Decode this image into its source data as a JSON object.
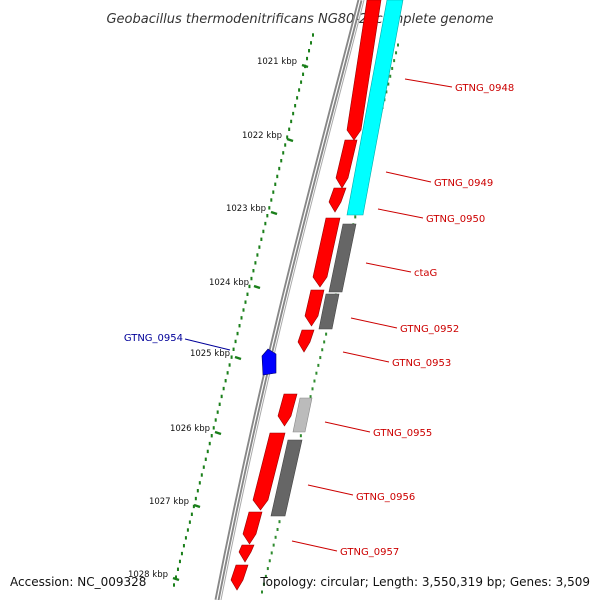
{
  "title": "Geobacillus thermodenitrificans NG80-2, complete genome",
  "accession_text": "Accession: NC_009328",
  "topology_text": "Topology: circular; Length: 3,550,319 bp; Genes: 3,509",
  "colors": {
    "forward_gene": "#ff0000",
    "reverse_gene": "#0000ff",
    "cds_dark": "#666666",
    "cds_light": "#bbbbbb",
    "rna": "#00ffff",
    "tick": "#1a7f1a",
    "axis": "#888888",
    "label_forward": "#cc0000",
    "label_reverse": "#000099"
  },
  "ticks": [
    {
      "label": "1021 kbp"
    },
    {
      "label": "1022 kbp"
    },
    {
      "label": "1023 kbp"
    },
    {
      "label": "1024 kbp"
    },
    {
      "label": "1025 kbp"
    },
    {
      "label": "1026 kbp"
    },
    {
      "label": "1027 kbp"
    },
    {
      "label": "1028 kbp"
    }
  ],
  "gene_labels": [
    {
      "name": "GTNG_0948",
      "strand": "forward"
    },
    {
      "name": "GTNG_0949",
      "strand": "forward"
    },
    {
      "name": "GTNG_0950",
      "strand": "forward"
    },
    {
      "name": "ctaG",
      "strand": "forward"
    },
    {
      "name": "GTNG_0952",
      "strand": "forward"
    },
    {
      "name": "GTNG_0953",
      "strand": "forward"
    },
    {
      "name": "GTNG_0954",
      "strand": "reverse"
    },
    {
      "name": "GTNG_0955",
      "strand": "forward"
    },
    {
      "name": "GTNG_0956",
      "strand": "forward"
    },
    {
      "name": "GTNG_0957",
      "strand": "forward"
    }
  ]
}
